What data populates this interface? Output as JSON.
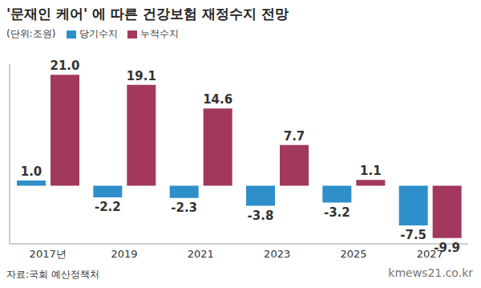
{
  "chart_data": {
    "type": "bar",
    "title": "'문재인 케어' 에 따른 건강보험 재정수지 전망",
    "subtitle": "(단위:조원)",
    "source": "자료:국회 예산정책처",
    "watermark": "kmews21.co.kr",
    "categories": [
      "2017년",
      "2019",
      "2021",
      "2023",
      "2025",
      "2027"
    ],
    "series": [
      {
        "name": "당기수지",
        "color": "#2f8fcb",
        "values": [
          1.0,
          -2.2,
          -2.3,
          -3.8,
          -3.2,
          -7.5
        ],
        "value_labels": [
          "1.0",
          "-2.2",
          "-2.3",
          "-3.8",
          "-3.2",
          "-7.5"
        ]
      },
      {
        "name": "누적수지",
        "color": "#a3385f",
        "values": [
          21.0,
          19.1,
          14.6,
          7.7,
          1.1,
          -9.9
        ],
        "value_labels": [
          "21.0",
          "19.1",
          "14.6",
          "7.7",
          "1.1",
          "-9.9"
        ]
      }
    ],
    "ylim": [
      -11,
      23
    ],
    "data_labels": true,
    "legend": "top-left",
    "tick_labels": "x",
    "grid": false
  }
}
